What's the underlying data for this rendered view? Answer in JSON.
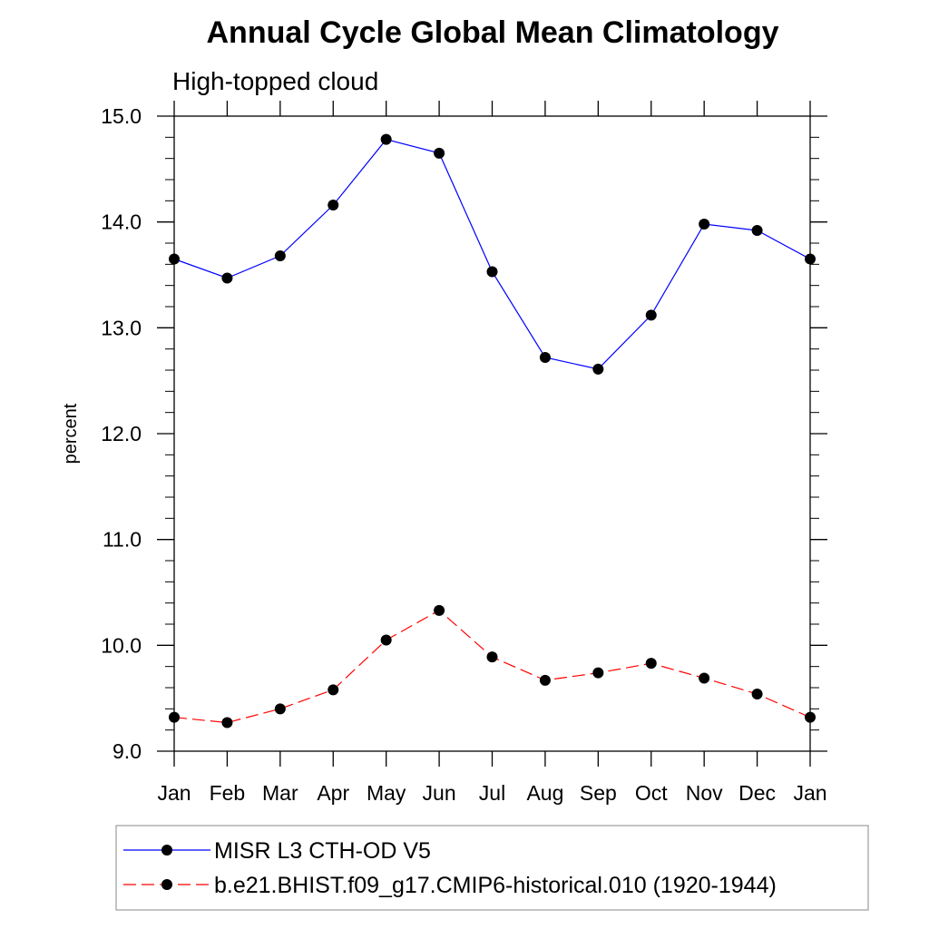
{
  "chart_data": {
    "type": "line",
    "title": "Annual Cycle Global Mean Climatology",
    "subtitle": "High-topped cloud",
    "xlabel": "",
    "ylabel": "percent",
    "categories": [
      "Jan",
      "Feb",
      "Mar",
      "Apr",
      "May",
      "Jun",
      "Jul",
      "Aug",
      "Sep",
      "Oct",
      "Nov",
      "Dec",
      "Jan"
    ],
    "ylim": [
      9.0,
      15.0
    ],
    "yticks": [
      "9.0",
      "10.0",
      "11.0",
      "12.0",
      "13.0",
      "14.0",
      "15.0"
    ],
    "series": [
      {
        "name": "MISR L3 CTH-OD V5",
        "color": "#0000ff",
        "dash": "solid",
        "values": [
          13.65,
          13.47,
          13.68,
          14.16,
          14.78,
          14.65,
          13.53,
          12.72,
          12.61,
          13.12,
          13.98,
          13.92,
          13.65
        ]
      },
      {
        "name": "b.e21.BHIST.f09_g17.CMIP6-historical.010 (1920-1944)",
        "color": "#ff0000",
        "dash": "dashed",
        "values": [
          9.32,
          9.27,
          9.4,
          9.58,
          10.05,
          10.33,
          9.89,
          9.67,
          9.74,
          9.83,
          9.69,
          9.54,
          9.32
        ]
      }
    ],
    "grid": false,
    "legend_position": "bottom"
  }
}
